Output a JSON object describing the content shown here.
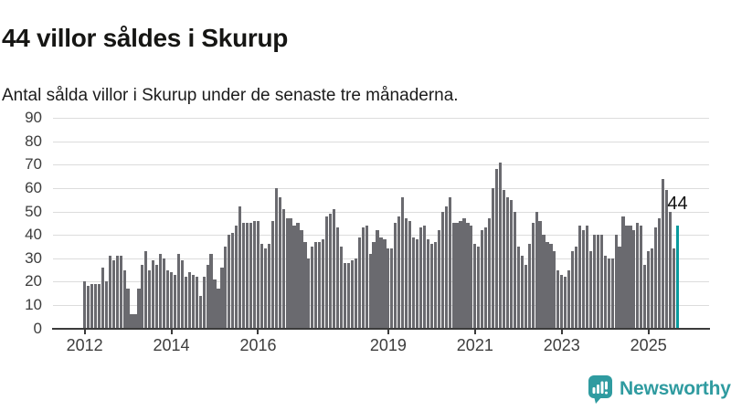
{
  "page": {
    "title": "44 villor såldes i Skurup",
    "subtitle": "Antal sålda villor i Skurup under de senaste tre månaderna."
  },
  "branding": {
    "logo_text": "Newsworthy",
    "logo_color": "#2f9ba0",
    "logo_icon": "bar-chart-speech-bubble-icon"
  },
  "chart_data": {
    "type": "bar",
    "frequency": "monthly",
    "start_year": 2012,
    "ylabel": "",
    "xlabel": "",
    "ylim": [
      0,
      90
    ],
    "yticks": [
      0,
      10,
      20,
      30,
      40,
      50,
      60,
      70,
      80,
      90
    ],
    "xtick_years": [
      2012,
      2014,
      2016,
      2019,
      2021,
      2023,
      2025
    ],
    "grid": "horizontal",
    "bar_color": "#6a6a6f",
    "highlight_color": "#0a9b9e",
    "annotation_label": "44",
    "highlight_value": 44,
    "values": [
      20,
      18,
      19,
      19,
      19,
      26,
      20,
      31,
      29,
      31,
      31,
      25,
      17,
      6,
      6,
      17,
      27,
      33,
      25,
      29,
      27,
      32,
      30,
      25,
      24,
      23,
      32,
      29,
      22,
      24,
      23,
      22,
      14,
      22,
      27,
      32,
      21,
      17,
      26,
      35,
      40,
      41,
      44,
      52,
      45,
      45,
      45,
      46,
      46,
      36,
      34,
      36,
      46,
      60,
      56,
      51,
      47,
      47,
      44,
      45,
      42,
      37,
      30,
      35,
      37,
      37,
      38,
      48,
      49,
      51,
      43,
      35,
      28,
      28,
      29,
      30,
      39,
      43,
      44,
      32,
      37,
      42,
      39,
      38,
      34,
      34,
      45,
      48,
      56,
      47,
      46,
      39,
      38,
      43,
      44,
      38,
      36,
      37,
      42,
      50,
      52,
      56,
      45,
      45,
      46,
      47,
      45,
      44,
      36,
      35,
      42,
      43,
      47,
      60,
      68,
      71,
      59,
      56,
      55,
      50,
      35,
      31,
      27,
      36,
      45,
      50,
      46,
      40,
      37,
      36,
      33,
      25,
      23,
      22,
      25,
      33,
      35,
      44,
      42,
      44,
      33,
      40,
      40,
      40,
      31,
      30,
      30,
      40,
      35,
      48,
      44,
      44,
      42,
      45,
      44,
      27,
      33,
      34,
      43,
      47,
      64,
      59,
      50,
      34,
      44
    ]
  }
}
